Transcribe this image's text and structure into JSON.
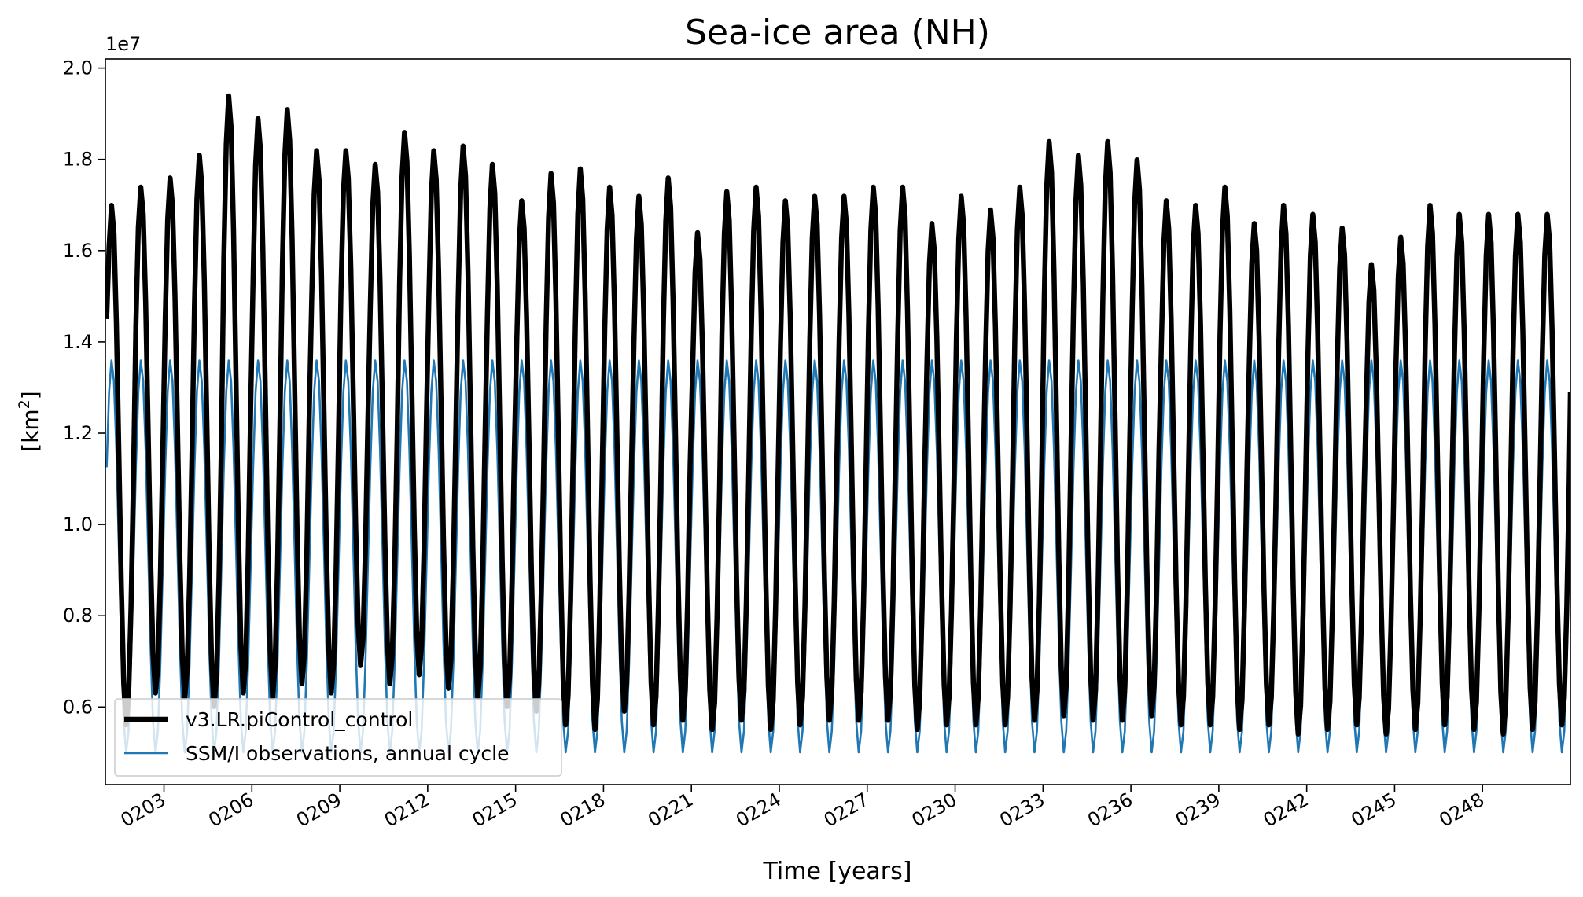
{
  "chart_data": {
    "type": "line",
    "title": "Sea-ice area (NH)",
    "xlabel": "Time [years]",
    "ylabel_base": "[km",
    "ylabel_sup": "2",
    "ylabel_end": "]",
    "y_offset_label": "1e7",
    "xlim": [
      201.0,
      251.0
    ],
    "ylim": [
      4300000,
      20200000
    ],
    "x_ticks": [
      203,
      206,
      209,
      212,
      215,
      218,
      221,
      224,
      227,
      230,
      233,
      236,
      239,
      242,
      245,
      248
    ],
    "x_tick_labels": [
      "0203",
      "0206",
      "0209",
      "0212",
      "0215",
      "0218",
      "0221",
      "0224",
      "0227",
      "0230",
      "0233",
      "0236",
      "0239",
      "0242",
      "0245",
      "0248"
    ],
    "y_ticks": [
      6000000,
      8000000,
      10000000,
      12000000,
      14000000,
      16000000,
      18000000,
      20000000
    ],
    "y_tick_labels": [
      "0.6",
      "0.8",
      "1.0",
      "1.2",
      "1.4",
      "1.6",
      "1.8",
      "2.0"
    ],
    "legend_position": "lower left",
    "series": [
      {
        "name": "v3.LR.piControl_control",
        "color": "#000000",
        "style": "thick",
        "annual_max": [
          17.0,
          17.4,
          17.6,
          18.1,
          19.4,
          18.9,
          19.1,
          18.2,
          18.2,
          17.9,
          18.6,
          18.2,
          18.3,
          17.9,
          17.1,
          17.7,
          17.8,
          17.4,
          17.2,
          17.6,
          16.4,
          17.3,
          17.4,
          17.1,
          17.2,
          17.2,
          17.4,
          17.4,
          16.6,
          17.2,
          16.9,
          17.4,
          18.4,
          18.1,
          18.4,
          18.0,
          17.1,
          17.0,
          17.4,
          16.6,
          17.0,
          16.8,
          16.5,
          15.7,
          16.3,
          17.0,
          16.8,
          16.8,
          16.8,
          16.8
        ],
        "annual_min": [
          5.6,
          6.3,
          6.2,
          6.0,
          6.3,
          6.2,
          6.5,
          6.3,
          6.9,
          6.5,
          6.7,
          6.4,
          6.2,
          6.0,
          5.9,
          5.6,
          5.5,
          5.9,
          5.6,
          5.7,
          5.5,
          5.7,
          5.5,
          5.6,
          5.7,
          5.7,
          5.7,
          5.5,
          5.6,
          5.6,
          5.6,
          5.7,
          5.8,
          5.7,
          5.7,
          5.8,
          5.6,
          5.6,
          5.5,
          5.6,
          5.4,
          5.5,
          5.6,
          5.4,
          5.5,
          5.6,
          5.5,
          5.4,
          5.5,
          5.6
        ],
        "annual_values_scale": "1e6 km2",
        "start_value": 14500000,
        "end_value": 12900000
      },
      {
        "name": "SSM/I observations, annual cycle",
        "color": "#1f77b4",
        "style": "thin",
        "annual_max": 13600000,
        "annual_min": 5000000
      }
    ]
  }
}
